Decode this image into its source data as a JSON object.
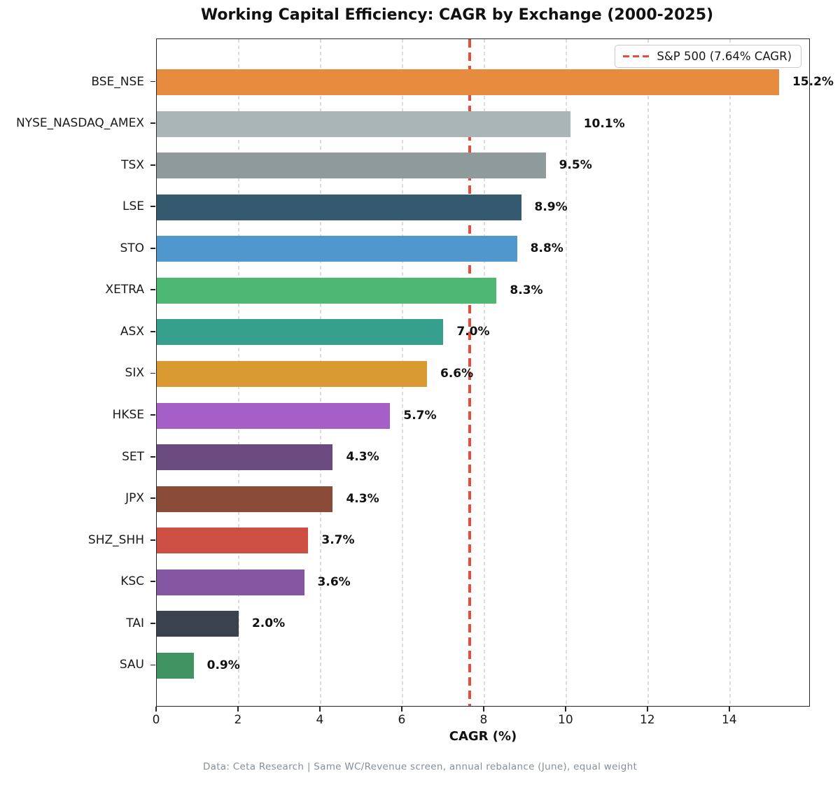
{
  "title": "Working Capital Efficiency: CAGR by Exchange (2000-2025)",
  "footer": "Data: Ceta Research | Same WC/Revenue screen, annual rebalance (June), equal weight",
  "chart_data": {
    "type": "bar",
    "orientation": "horizontal",
    "title": "Working Capital Efficiency: CAGR by Exchange (2000-2025)",
    "xlabel": "CAGR (%)",
    "ylabel": "",
    "xlim": [
      0,
      15.97
    ],
    "xticks": [
      0,
      2,
      4,
      6,
      8,
      10,
      12,
      14
    ],
    "grid": true,
    "grid_axis": "x",
    "legend_position": "upper right",
    "categories": [
      "BSE_NSE",
      "NYSE_NASDAQ_AMEX",
      "TSX",
      "LSE",
      "STO",
      "XETRA",
      "ASX",
      "SIX",
      "HKSE",
      "SET",
      "JPX",
      "SHZ_SHH",
      "KSC",
      "TAI",
      "SAU"
    ],
    "values": [
      15.2,
      10.1,
      9.5,
      8.9,
      8.8,
      8.3,
      7.0,
      6.6,
      5.7,
      4.3,
      4.3,
      3.7,
      3.6,
      2.0,
      0.9
    ],
    "value_labels": [
      "15.2%",
      "10.1%",
      "9.5%",
      "8.9%",
      "8.8%",
      "8.3%",
      "7.0%",
      "6.6%",
      "5.7%",
      "4.3%",
      "4.3%",
      "3.7%",
      "3.6%",
      "2.0%",
      "0.9%"
    ],
    "bar_colors": [
      "#e78b3e",
      "#a9b5b6",
      "#8e9b9a",
      "#35596e",
      "#4f97cd",
      "#4cb873",
      "#36a08c",
      "#d99b31",
      "#a65fc6",
      "#6b4a80",
      "#8a4c38",
      "#cd4f44",
      "#8556a1",
      "#3a424e",
      "#3f9461"
    ],
    "reference_line": {
      "value": 7.64,
      "label": "S&P 500 (7.64% CAGR)",
      "color": "#e74c3c",
      "style": "dashed"
    }
  },
  "colors": {
    "grid": "#dcdcdc",
    "spine": "#262626",
    "reference": "#e74c3c",
    "footer_text": "#848f99"
  }
}
